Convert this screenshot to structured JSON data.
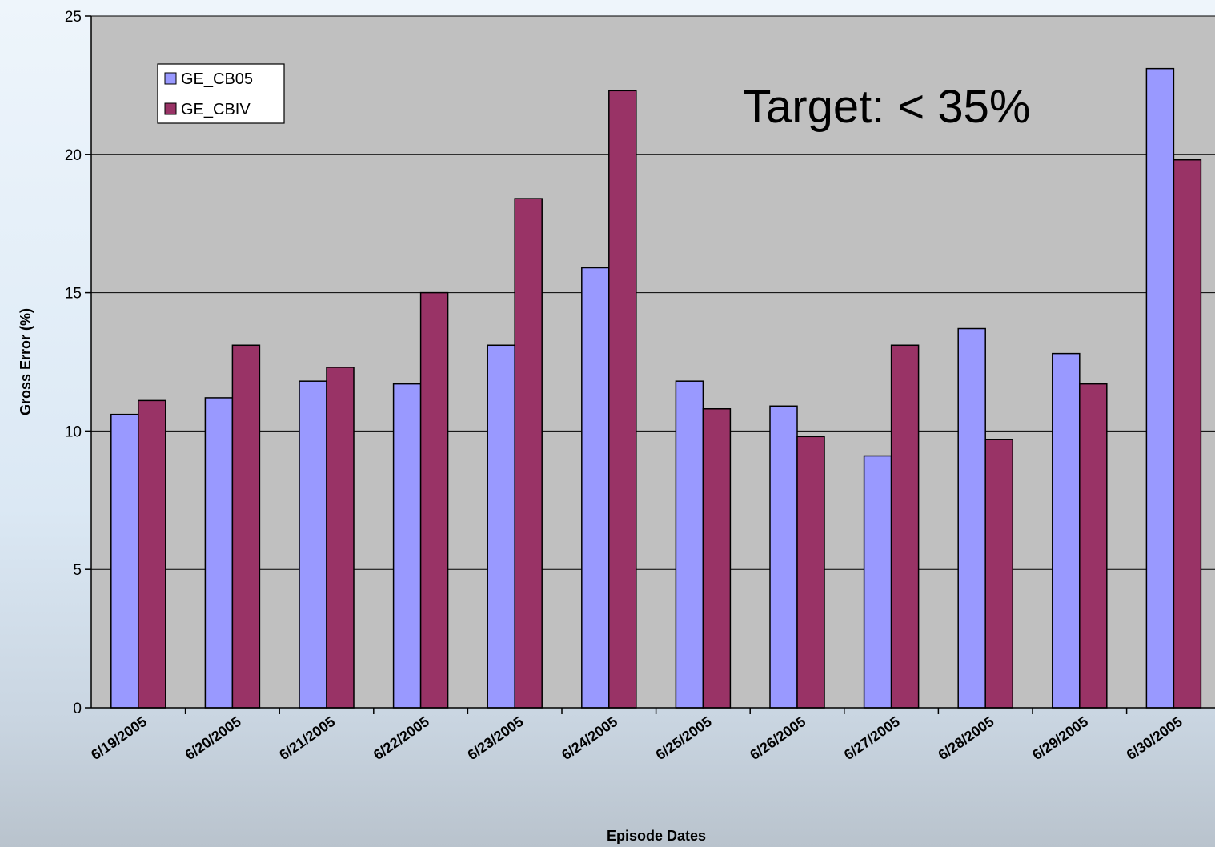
{
  "chart_data": {
    "type": "bar",
    "annotation": "Target: < 35%",
    "xlabel": "Episode Dates",
    "ylabel": "Gross Error (%)",
    "ylim": [
      0,
      25
    ],
    "yticks": [
      0,
      5,
      10,
      15,
      20,
      25
    ],
    "grid": true,
    "legend_position": "top-left",
    "categories": [
      "6/19/2005",
      "6/20/2005",
      "6/21/2005",
      "6/22/2005",
      "6/23/2005",
      "6/24/2005",
      "6/25/2005",
      "6/26/2005",
      "6/27/2005",
      "6/28/2005",
      "6/29/2005",
      "6/30/2005"
    ],
    "series": [
      {
        "name": "GE_CB05",
        "color": "#9999ff",
        "values": [
          10.6,
          11.2,
          11.8,
          11.7,
          13.1,
          15.9,
          11.8,
          10.9,
          9.1,
          13.7,
          12.8,
          23.1
        ]
      },
      {
        "name": "GE_CBIV",
        "color": "#993366",
        "values": [
          11.1,
          13.1,
          12.3,
          15.0,
          18.4,
          22.3,
          10.8,
          9.8,
          13.1,
          9.7,
          11.7,
          19.8
        ]
      }
    ],
    "plot_background": "#c0c0c0"
  }
}
